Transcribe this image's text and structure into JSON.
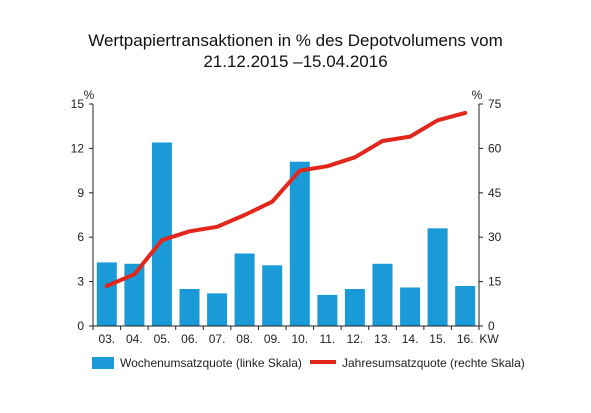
{
  "title_line1": "Wertpapiertransaktionen in % des Depotvolumens vom",
  "title_line2": "21.12.2015 –15.04.2016",
  "chart_data": {
    "type": "bar+line",
    "categories": [
      "03.",
      "04.",
      "05.",
      "06.",
      "07.",
      "08.",
      "09.",
      "10.",
      "11.",
      "12.",
      "13.",
      "14.",
      "15.",
      "16."
    ],
    "x_unit": "KW",
    "y_left": {
      "unit": "%",
      "lim": [
        0,
        15
      ],
      "ticks": [
        0,
        3,
        6,
        9,
        12,
        15
      ]
    },
    "y_right": {
      "unit": "%",
      "lim": [
        0,
        75
      ],
      "ticks": [
        0,
        15,
        30,
        45,
        60,
        75
      ]
    },
    "series": [
      {
        "name": "Wochenumsatzquote (linke Skala)",
        "kind": "bar",
        "axis": "left",
        "color": "#1a9ad7",
        "values": [
          4.3,
          4.2,
          12.4,
          2.5,
          2.2,
          4.9,
          4.1,
          11.1,
          2.1,
          2.5,
          4.2,
          2.6,
          6.6,
          2.7
        ]
      },
      {
        "name": "Jahresumsatzquote (rechte Skala)",
        "kind": "line",
        "axis": "right",
        "color": "#e2261c",
        "values": [
          13.5,
          17.5,
          29,
          32,
          33.5,
          37.5,
          42,
          52.5,
          54,
          57,
          62.5,
          64,
          69.5,
          72
        ]
      }
    ],
    "grid": false,
    "legend_position": "bottom"
  }
}
